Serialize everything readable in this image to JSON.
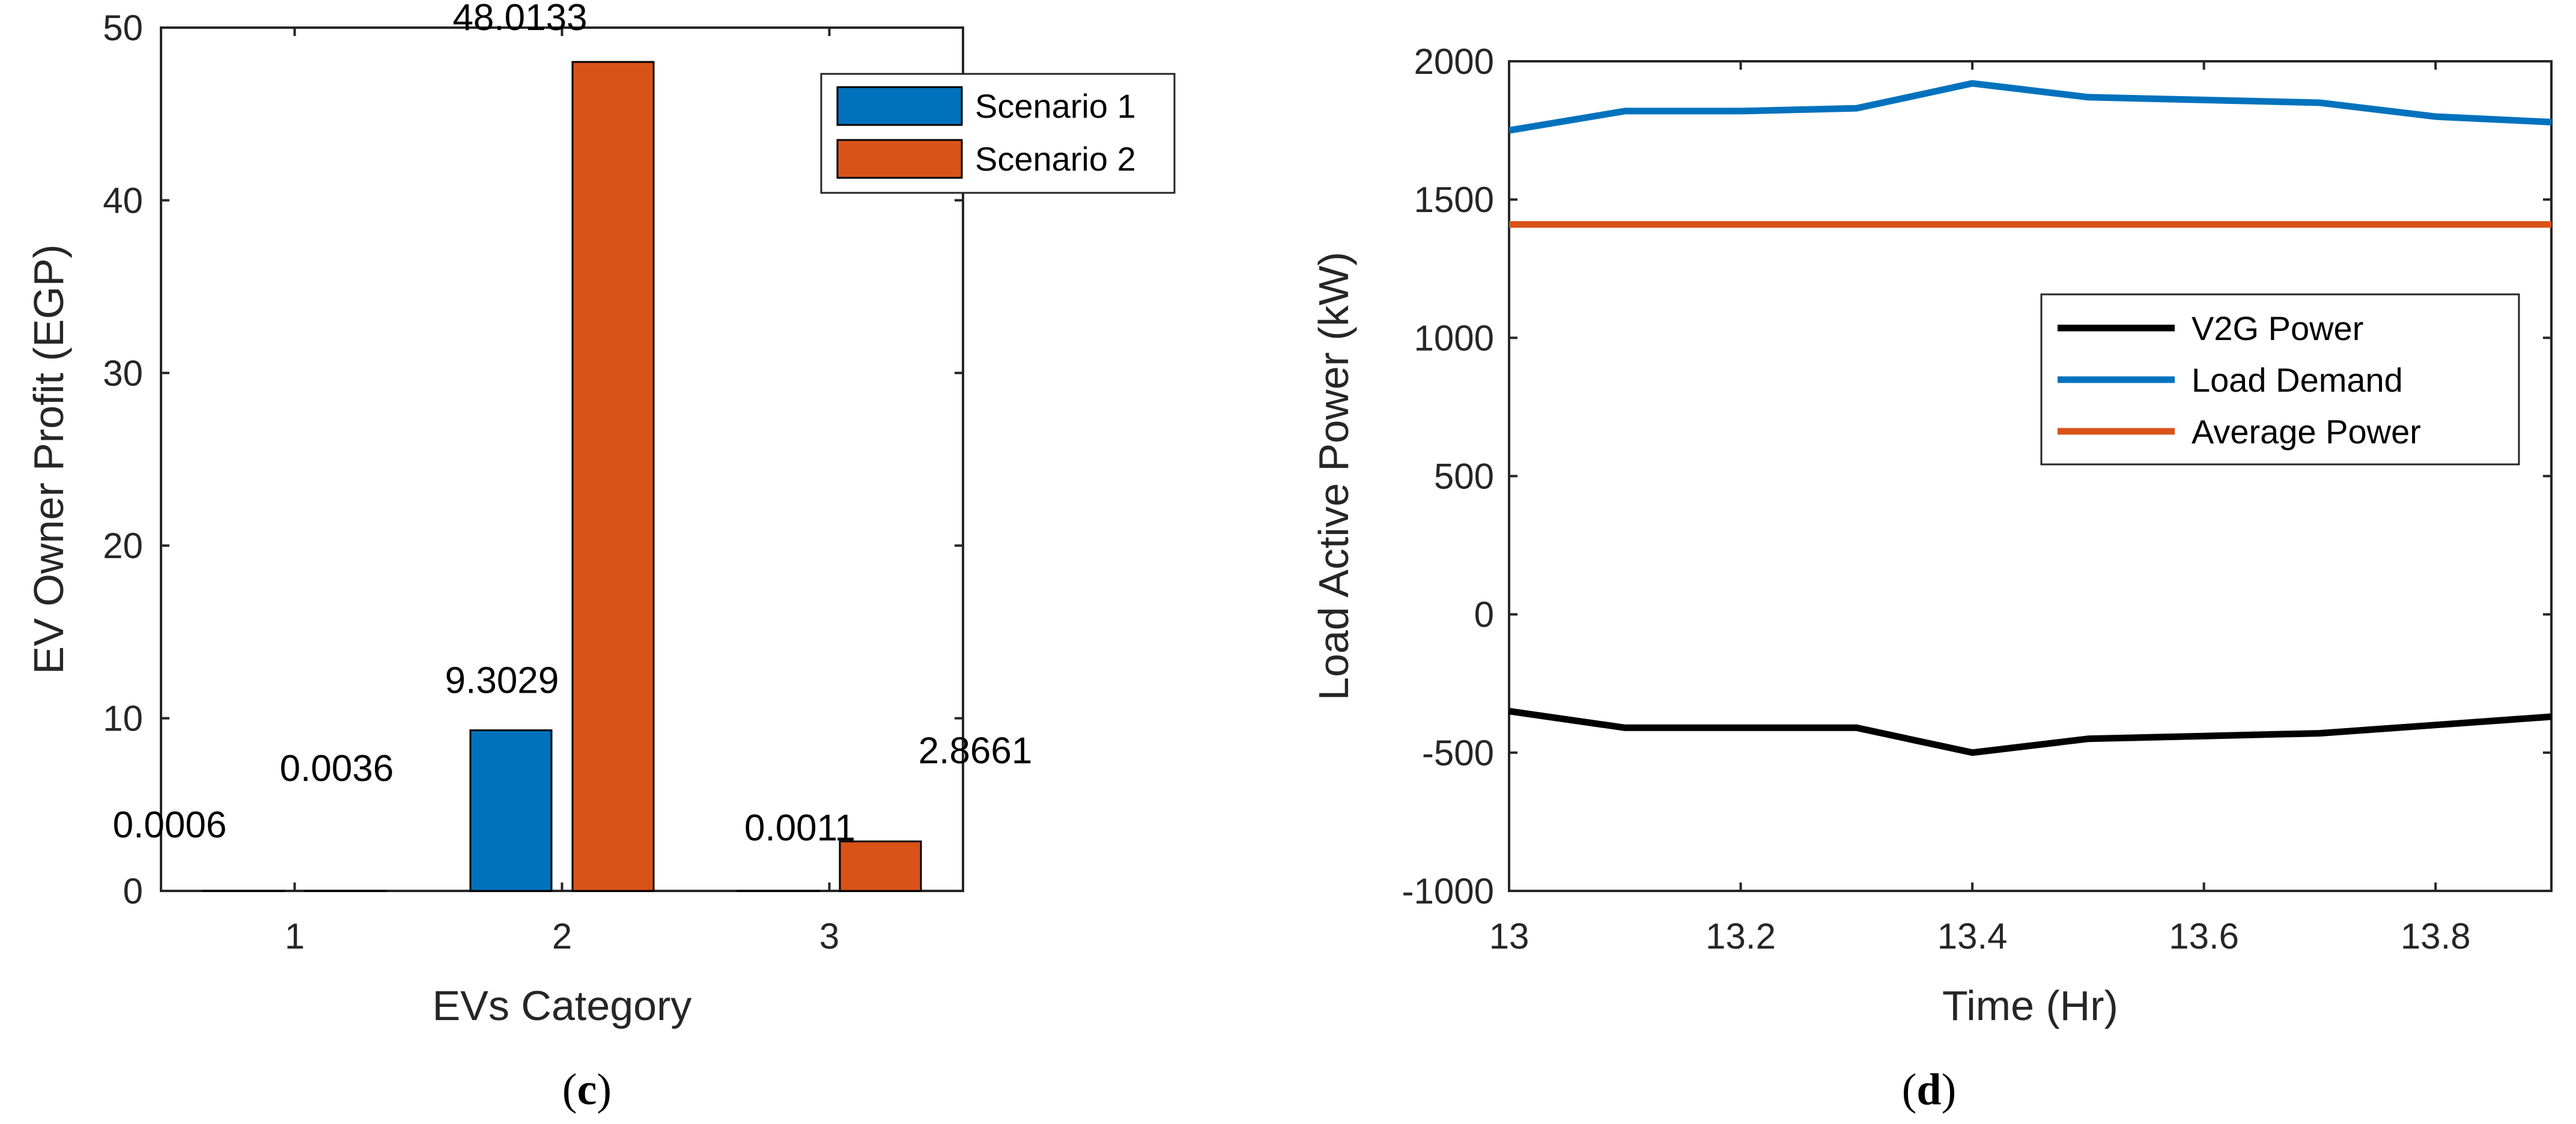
{
  "chart_data": [
    {
      "type": "bar",
      "panel": "c",
      "caption_open": "(",
      "caption_letter": "c",
      "caption_close": ")",
      "xlabel": "EVs Category",
      "ylabel": "EV Owner Profit (EGP)",
      "categories": [
        "1",
        "2",
        "3"
      ],
      "ylim": [
        0,
        50
      ],
      "yticks": [
        0,
        10,
        20,
        30,
        40,
        50
      ],
      "series": [
        {
          "name": "Scenario 1",
          "color": "#0072BD",
          "values": [
            0.0006,
            9.3029,
            0.0011
          ]
        },
        {
          "name": "Scenario 2",
          "color": "#D95319",
          "values": [
            0.0036,
            48.0133,
            2.8661
          ]
        }
      ],
      "data_labels": [
        [
          "0.0006",
          "9.3029",
          "0.0011"
        ],
        [
          "0.0036",
          "48.0133",
          "2.8661"
        ]
      ],
      "legend_position": "top-right"
    },
    {
      "type": "line",
      "panel": "d",
      "caption_open": "(",
      "caption_letter": "d",
      "caption_close": ")",
      "xlabel": "Time (Hr)",
      "ylabel": "Load Active Power (kW)",
      "xlim": [
        13,
        13.9
      ],
      "ylim": [
        -1000,
        2000
      ],
      "xticks": [
        13,
        13.2,
        13.4,
        13.6,
        13.8
      ],
      "xtick_labels": [
        "13",
        "13.2",
        "13.4",
        "13.6",
        "13.8"
      ],
      "yticks": [
        -1000,
        -500,
        0,
        500,
        1000,
        1500,
        2000
      ],
      "ytick_labels": [
        "-1000",
        "-500",
        "0",
        "500",
        "1000",
        "1500",
        "2000"
      ],
      "x": [
        13.0,
        13.1,
        13.2,
        13.3,
        13.4,
        13.5,
        13.6,
        13.7,
        13.8,
        13.9
      ],
      "series": [
        {
          "name": "V2G Power",
          "color": "#000000",
          "values": [
            -350,
            -410,
            -410,
            -410,
            -500,
            -450,
            -440,
            -430,
            -400,
            -370
          ]
        },
        {
          "name": "Load Demand",
          "color": "#0072BD",
          "values": [
            1750,
            1820,
            1820,
            1830,
            1920,
            1870,
            1860,
            1850,
            1800,
            1780
          ]
        },
        {
          "name": "Average Power",
          "color": "#D95319",
          "values": [
            1410,
            1410,
            1410,
            1410,
            1410,
            1410,
            1410,
            1410,
            1410,
            1410
          ]
        }
      ],
      "legend_position": "center-right"
    }
  ]
}
